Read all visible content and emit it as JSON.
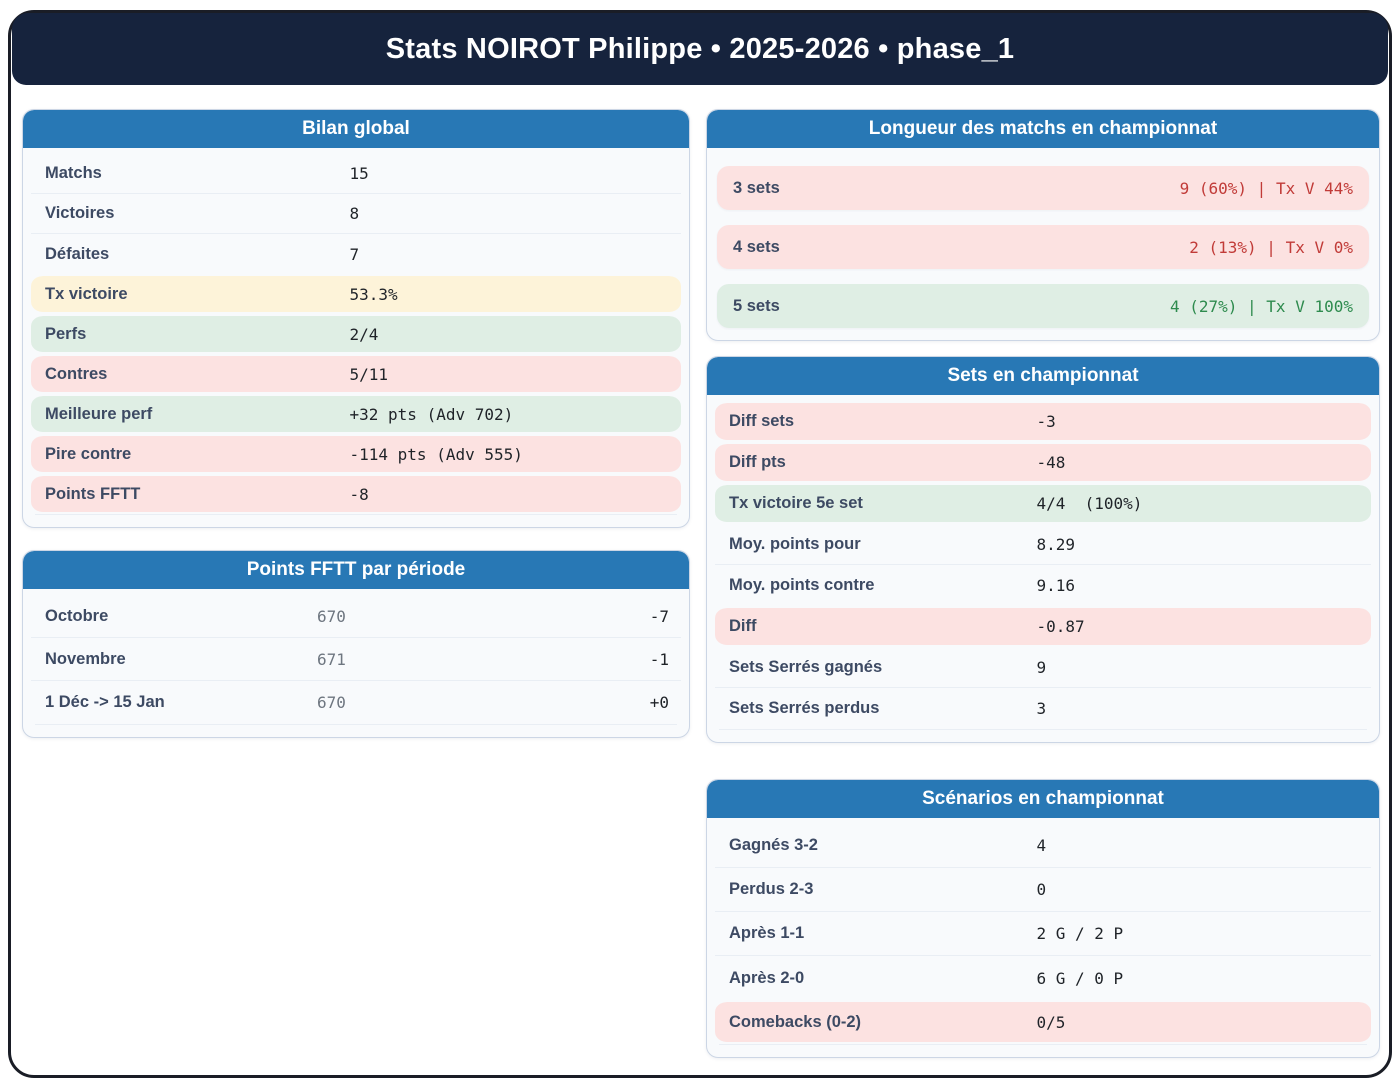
{
  "banner": {
    "title": "Stats NOIROT Philippe • 2025-2026 • phase_1"
  },
  "colors": {
    "navy": "#16233d",
    "header_blue": "#2878b5",
    "card_bg": "#f8fafc",
    "card_border": "#ccd6e5",
    "label": "#3d4a63",
    "value": "#1f2328",
    "muted": "#6e7680",
    "red": "#c13b38",
    "green": "#2e8b4e",
    "yellow_bg": "#fdf3d9",
    "green_bg": "#dfeee4",
    "pink_bg": "#fce2e1",
    "divider": "#e9eef4",
    "outer_border": "#1a1d26"
  },
  "cards": {
    "bilan": {
      "title": "Bilan global",
      "rows": [
        {
          "label": "Matchs",
          "value": "15",
          "tone": null
        },
        {
          "label": "Victoires",
          "value": "8",
          "tone": null
        },
        {
          "label": "Défaites",
          "value": "7",
          "tone": null
        },
        {
          "label": "Tx victoire",
          "value": "53.3%",
          "tone": "yellow"
        },
        {
          "label": "Perfs",
          "value": "2/4",
          "tone": "green"
        },
        {
          "label": "Contres",
          "value": "5/11",
          "tone": "pink"
        },
        {
          "label": "Meilleure perf",
          "value": "+32 pts (Adv 702)",
          "tone": "green"
        },
        {
          "label": "Pire contre",
          "value": "-114 pts (Adv 555)",
          "tone": "pink"
        },
        {
          "label": "Points FFTT",
          "value": "-8",
          "tone": "pink"
        }
      ]
    },
    "points_periode": {
      "title": "Points FFTT par période",
      "rows": [
        {
          "label": "Octobre",
          "points": "670",
          "delta": "-7"
        },
        {
          "label": "Novembre",
          "points": "671",
          "delta": "-1"
        },
        {
          "label": "1 Déc -> 15 Jan",
          "points": "670",
          "delta": "+0"
        }
      ]
    },
    "longueur": {
      "title": "Longueur des matchs en championnat",
      "rows": [
        {
          "label": "3 sets",
          "value": "9 (60%) | Tx V 44%",
          "tone": "red-strong"
        },
        {
          "label": "4 sets",
          "value": "2 (13%) | Tx V 0%",
          "tone": "red-strong"
        },
        {
          "label": "5 sets",
          "value": "4 (27%) | Tx V 100%",
          "tone": "green-strong"
        }
      ]
    },
    "sets": {
      "title": "Sets en championnat",
      "rows": [
        {
          "label": "Diff sets",
          "value": "-3",
          "tone": "pink"
        },
        {
          "label": "Diff pts",
          "value": "-48",
          "tone": "pink"
        },
        {
          "label": "Tx victoire 5e set",
          "value": "4/4  (100%)",
          "tone": "green"
        },
        {
          "label": "Moy. points pour",
          "value": "8.29",
          "tone": null
        },
        {
          "label": "Moy. points contre",
          "value": "9.16",
          "tone": null
        },
        {
          "label": "Diff",
          "value": "-0.87",
          "tone": "pink"
        },
        {
          "label": "Sets Serrés gagnés",
          "value": "9",
          "tone": null
        },
        {
          "label": "Sets Serrés perdus",
          "value": "3",
          "tone": null
        }
      ]
    },
    "scenarios": {
      "title": "Scénarios en championnat",
      "rows": [
        {
          "label": "Gagnés 3-2",
          "value": "4",
          "tone": null
        },
        {
          "label": "Perdus 2-3",
          "value": "0",
          "tone": null
        },
        {
          "label": "Après 1-1",
          "value": "2 G / 2 P",
          "tone": null
        },
        {
          "label": "Après 2-0",
          "value": "6 G / 0 P",
          "tone": null
        },
        {
          "label": "Comebacks (0-2)",
          "value": "0/5",
          "tone": "pink"
        }
      ]
    }
  }
}
